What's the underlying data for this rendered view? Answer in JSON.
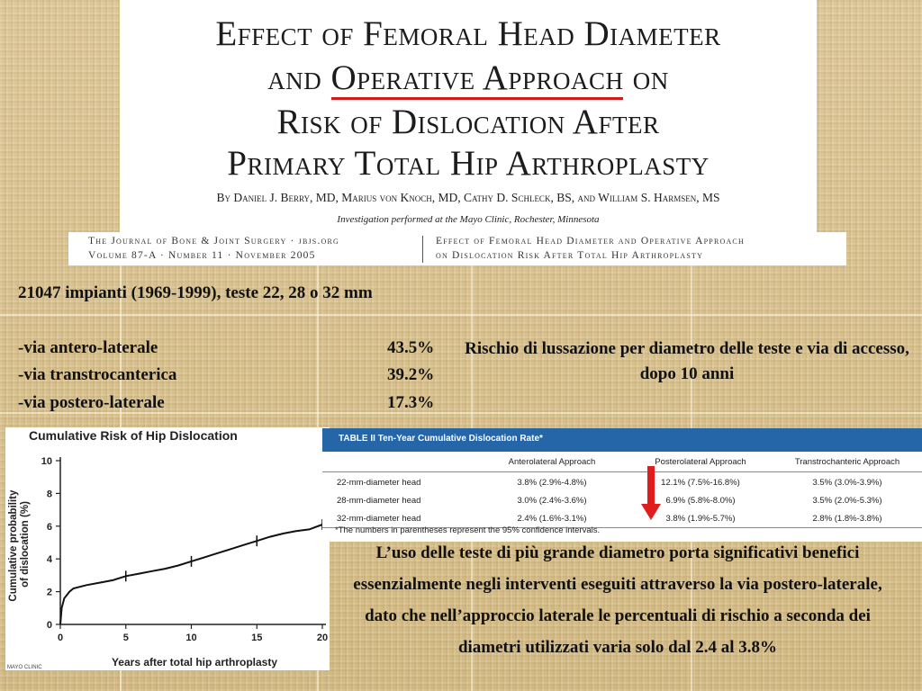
{
  "paper": {
    "title_line1": "Effect of Femoral Head Diameter",
    "title_line2_pre": "and ",
    "title_line2_underlined": "Operative Approach",
    "title_line2_post": " on",
    "title_line3": "Risk of Dislocation After",
    "title_line4": "Primary Total Hip Arthroplasty",
    "authors": "By Daniel J. Berry, MD, Marius von Knoch, MD, Cathy D. Schleck, BS, and William S. Harmsen, MS",
    "institution": "Investigation performed at the Mayo Clinic, Rochester, Minnesota",
    "accent_color": "#d21b1b"
  },
  "journal": {
    "left_line1": "The Journal of Bone & Joint Surgery · jbjs.org",
    "left_line2": "Volume 87-A · Number 11 · November 2005",
    "right_line1": "Effect of Femoral Head Diameter and Operative Approach",
    "right_line2": "on Dislocation Risk After Total Hip Arthroplasty"
  },
  "summary": {
    "implants": "21047 impianti (1969-1999), teste 22, 28 o 32 mm",
    "approaches": [
      {
        "label": "-via antero-laterale",
        "value": "43.5%"
      },
      {
        "label": "-via transtrocanterica",
        "value": "39.2%"
      },
      {
        "label": "-via postero-laterale",
        "value": "17.3%"
      }
    ],
    "risk_title": "Rischio di lussazione per diametro delle teste e via di accesso, dopo 10 anni"
  },
  "chart_data": {
    "type": "line",
    "title": "Cumulative Risk of Hip Dislocation",
    "xlabel": "Years after total hip arthroplasty",
    "ylabel": "Cumulative probability of dislocation (%)",
    "xlim": [
      0,
      20
    ],
    "ylim": [
      0,
      10
    ],
    "xticks": [
      0,
      5,
      10,
      15,
      20
    ],
    "yticks": [
      0,
      2,
      4,
      6,
      8,
      10
    ],
    "series": [
      {
        "x": [
          0,
          0.1,
          0.3,
          0.7,
          1,
          2,
          3,
          4,
          5,
          6,
          7,
          8,
          9,
          10,
          11,
          12,
          13,
          14,
          15,
          16,
          17,
          18,
          19,
          20
        ],
        "values": [
          0,
          1.0,
          1.6,
          2.0,
          2.2,
          2.4,
          2.55,
          2.7,
          2.95,
          3.1,
          3.25,
          3.4,
          3.6,
          3.85,
          4.1,
          4.35,
          4.6,
          4.85,
          5.1,
          5.35,
          5.55,
          5.7,
          5.8,
          6.1
        ],
        "color": "#111111"
      }
    ],
    "footer_logo_text": "MAYO CLINIC"
  },
  "table": {
    "title": "TABLE II  Ten-Year Cumulative Dislocation Rate*",
    "header_color": "#2466a8",
    "columns": [
      "",
      "Anterolateral Approach",
      "Posterolateral Approach",
      "Transtrochanteric Approach"
    ],
    "rows": [
      [
        "22-mm-diameter head",
        "3.8% (2.9%-4.8%)",
        "12.1% (7.5%-16.8%)",
        "3.5% (3.0%-3.9%)"
      ],
      [
        "28-mm-diameter head",
        "3.0% (2.4%-3.6%)",
        "6.9% (5.8%-8.0%)",
        "3.5% (2.0%-5.3%)"
      ],
      [
        "32-mm-diameter head",
        "2.4% (1.6%-3.1%)",
        "3.8% (1.9%-5.7%)",
        "2.8% (1.8%-3.8%)"
      ]
    ],
    "footnote": "*The numbers in parentheses represent the 95% confidence intervals.",
    "arrow_color": "#e01c1c"
  },
  "conclusion": "L’uso delle teste di più grande diametro porta significativi benefici essenzialmente negli interventi eseguiti attraverso la via postero-laterale, dato che nell’approccio laterale le percentuali di rischio a seconda dei diametri utilizzati varia solo dal 2.4 al 3.8%"
}
